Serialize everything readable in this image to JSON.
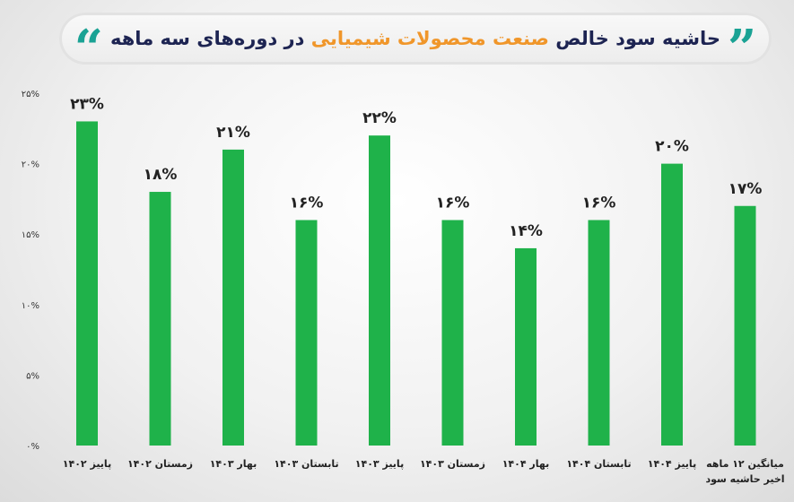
{
  "title": {
    "part1": "حاشیه سود خالص",
    "highlight": "صنعت محصولات شیمیایی",
    "part2": "در دوره‌های سه ماهه"
  },
  "colors": {
    "bar": "#1fb24a",
    "highlight": "#f0962a",
    "title": "#1d2452",
    "quote": "#1aa294"
  },
  "chart_data": {
    "type": "bar",
    "categories": [
      "پاییز ۱۴۰۲",
      "زمستان ۱۴۰۲",
      "بهار ۱۴۰۳",
      "تابستان ۱۴۰۳",
      "پاییز ۱۴۰۳",
      "زمستان ۱۴۰۳",
      "بهار ۱۴۰۴",
      "تابستان ۱۴۰۴",
      "پاییز ۱۴۰۴",
      [
        "میانگین ۱۲ ماهه",
        "اخیر حاشیه سود"
      ]
    ],
    "values": [
      23,
      18,
      21,
      16,
      22,
      16,
      14,
      16,
      20,
      17
    ],
    "data_labels": [
      "۲۳%",
      "۱۸%",
      "۲۱%",
      "۱۶%",
      "۲۲%",
      "۱۶%",
      "۱۴%",
      "۱۶%",
      "۲۰%",
      "۱۷%"
    ],
    "yticks": [
      0,
      5,
      10,
      15,
      20,
      25
    ],
    "ytick_labels": [
      "۰%",
      "۵%",
      "۱۰%",
      "۱۵%",
      "۲۰%",
      "۲۵%"
    ],
    "ylim": [
      0,
      25
    ],
    "grid": false,
    "legend": "none"
  }
}
